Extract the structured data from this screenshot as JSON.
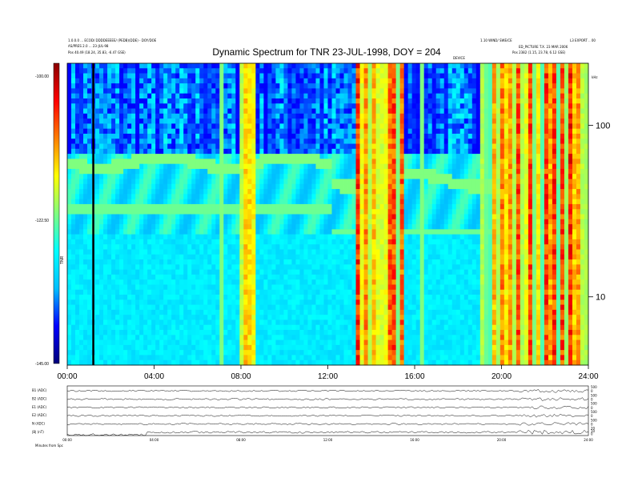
{
  "header": {
    "left_line1": "1.0.0.0 ... ECOD/ DDDDEEEEE/ (PEDB)(DDE) - DOY/DOE",
    "left_line2": "AS/PRES 2.0 ... 23-JUL-98",
    "left_line3": "Pos    40.49 (18.24, 35.83, -6.47 GSE)",
    "right_line1": "1.10 WIND/ SWE/CE",
    "right_line2": "L3 EXPORT .. 00",
    "right_line3": "ED_PICTURE  T.X.   23 MAR 2006",
    "right_line4": "Pos    2382 (1.15, 23.78, 6.12 GSE)",
    "top_mid": "DEVICE"
  },
  "chart_data": {
    "type": "heatmap",
    "title": "Dynamic Spectrum for TNR 23-JUL-1998, DOY = 204",
    "x_ticks": [
      "00:00",
      "04:00",
      "08:00",
      "12:00",
      "16:00",
      "20:00",
      "24:00"
    ],
    "x_range_hours": [
      0,
      24
    ],
    "y_scale": "log",
    "y_ticks": [
      10,
      100
    ],
    "y_unit_label": "kHz",
    "colorbar": {
      "label": "TNR",
      "ticks": [
        "-100.00",
        "-122.50",
        "-145.00"
      ],
      "range": [
        -145,
        -100
      ],
      "colors": [
        "#00007a",
        "#0000ff",
        "#00bfff",
        "#00ffff",
        "#7fff7f",
        "#ffff00",
        "#ff7f00",
        "#ff0000",
        "#8b0000"
      ]
    },
    "marker_line_hour": 1.2,
    "panels": [
      {
        "label": "B1 (ADC)",
        "right_ticks": [
          "500",
          "0"
        ]
      },
      {
        "label": "B2 (ADC)",
        "right_ticks": [
          "500",
          "0"
        ]
      },
      {
        "label": "E1 (ADC)",
        "right_ticks": [
          "500",
          "0"
        ]
      },
      {
        "label": "E2 (ADC)",
        "right_ticks": [
          "500",
          "0"
        ]
      },
      {
        "label": "N (ADC)",
        "right_ticks": [
          "500",
          "0"
        ]
      },
      {
        "label": "|B| (nT)",
        "right_ticks": [
          "20",
          "10",
          "0"
        ]
      }
    ],
    "lower_x_ticks": [
      "00:00",
      "04:00",
      "08:00",
      "12:00",
      "16:00",
      "20:00",
      "24:00"
    ],
    "lower_x_label": "Minutes from Spc"
  }
}
